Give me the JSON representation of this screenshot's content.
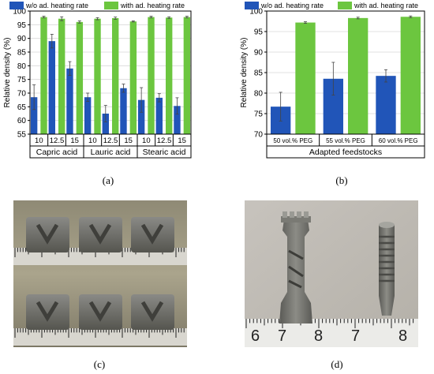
{
  "colors": {
    "without": "#2155b8",
    "with": "#6cc63f",
    "grid": "#d9d9d9",
    "axis": "#000000",
    "photo_bg": "#a69f86",
    "photo_bg2": "#c9c4bb",
    "part": "#6f6f6b",
    "ruler_bg": "#e9e9e6"
  },
  "panel_labels": {
    "a": "(a)",
    "b": "(b)",
    "c": "(c)",
    "d": "(d)"
  },
  "photo_c": {
    "description_icon": "cube-part-icon"
  },
  "photo_d": {
    "ruler_numbers": [
      "6",
      "7",
      "8",
      "7",
      "8"
    ]
  },
  "chart_data": [
    {
      "type": "bar",
      "panel": "a",
      "ylabel": "Relative density (%)",
      "ylim": [
        55,
        100
      ],
      "yticks": [
        55,
        60,
        65,
        70,
        75,
        80,
        85,
        90,
        95,
        100
      ],
      "grid": true,
      "legend_position": "top",
      "categories": [
        "10",
        "12.5",
        "15",
        "10",
        "12.5",
        "15",
        "10",
        "12.5",
        "15"
      ],
      "groups": [
        {
          "label": "Capric acid",
          "count": 3
        },
        {
          "label": "Lauric acid",
          "count": 3
        },
        {
          "label": "Stearic acid",
          "count": 3
        }
      ],
      "series": [
        {
          "name": "w/o ad. heating rate",
          "color_key": "without",
          "values": [
            68.5,
            89.0,
            79.0,
            68.5,
            62.5,
            71.8,
            67.5,
            68.3,
            65.3
          ],
          "errors": [
            4.5,
            2.5,
            2.5,
            1.5,
            3.0,
            1.5,
            4.5,
            1.5,
            3.0
          ]
        },
        {
          "name": "with ad. heating rate",
          "color_key": "with",
          "values": [
            97.8,
            97.2,
            96.0,
            97.2,
            97.4,
            96.2,
            97.8,
            97.6,
            97.8
          ],
          "errors": [
            0.3,
            0.7,
            0.4,
            0.4,
            0.4,
            0.2,
            0.3,
            0.3,
            0.3
          ]
        }
      ]
    },
    {
      "type": "bar",
      "panel": "b",
      "ylabel": "Relative density (%)",
      "xlabel": "Adapted feedstocks",
      "ylim": [
        70,
        100
      ],
      "yticks": [
        70,
        75,
        80,
        85,
        90,
        95,
        100
      ],
      "grid": true,
      "legend_position": "top",
      "categories": [
        "50 vol.% PEG",
        "55 vol.% PEG",
        "60 vol.% PEG"
      ],
      "series": [
        {
          "name": "w/o ad. heating rate",
          "color_key": "without",
          "values": [
            76.7,
            83.5,
            84.2
          ],
          "errors": [
            3.5,
            4.0,
            1.5
          ]
        },
        {
          "name": "with ad. heating rate",
          "color_key": "with",
          "values": [
            97.2,
            98.3,
            98.6
          ],
          "errors": [
            0.2,
            0.2,
            0.2
          ]
        }
      ]
    }
  ]
}
